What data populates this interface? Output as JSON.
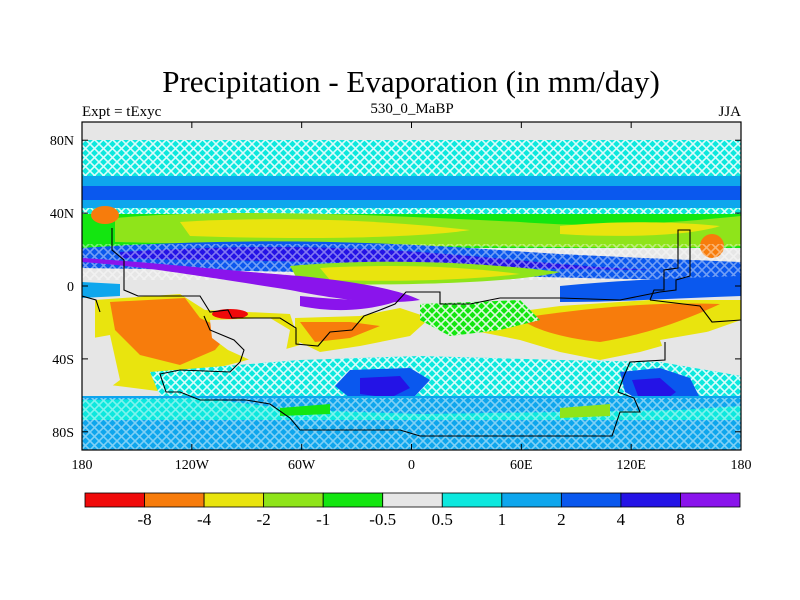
{
  "chart_data": {
    "type": "heatmap",
    "title": "Precipitation - Evaporation (in mm/day)",
    "left_label": "Expt = tExyc",
    "center_label": "530_0_MaBP",
    "right_label": "JJA",
    "x_ticks": [
      "180",
      "120W",
      "60W",
      "0",
      "60E",
      "120E",
      "180"
    ],
    "y_ticks": [
      "80N",
      "40N",
      "0",
      "40S",
      "80S"
    ],
    "xlim": [
      -180,
      180
    ],
    "ylim": [
      -90,
      90
    ],
    "colorbar": {
      "colors": [
        "#f00a0a",
        "#f77c0c",
        "#e9e40e",
        "#8fe41a",
        "#13e610",
        "#e6e6e6",
        "#0de8de",
        "#0ea6ed",
        "#0a58ee",
        "#2413e6",
        "#8a14ec"
      ],
      "labels": [
        "-8",
        "-4",
        "-2",
        "-1",
        "-0.5",
        "0.5",
        "1",
        "2",
        "4",
        "8"
      ]
    }
  }
}
